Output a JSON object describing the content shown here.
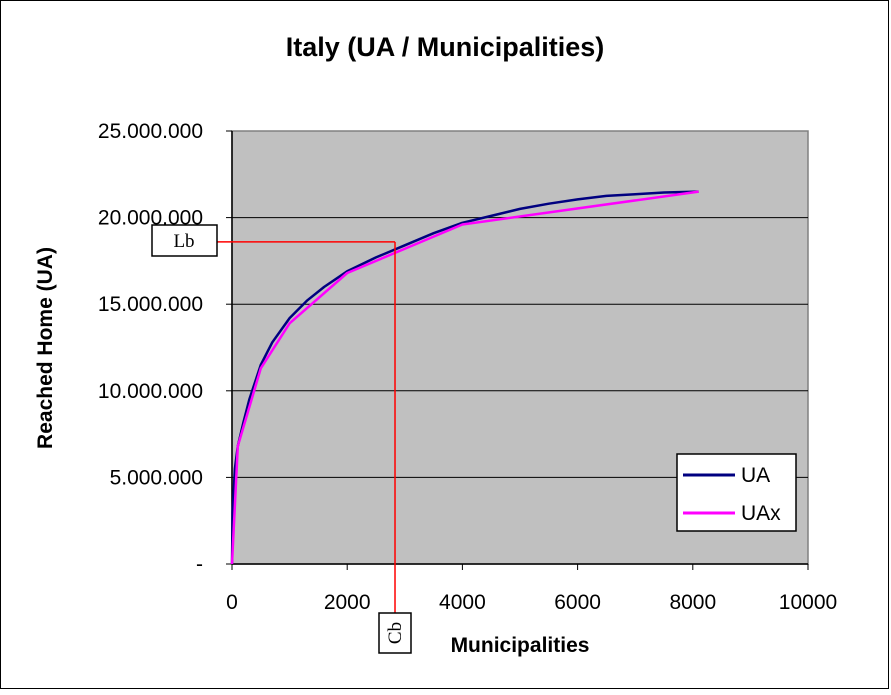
{
  "chart_data": {
    "type": "line",
    "title": "Italy (UA / Municipalities)",
    "xlabel": "Municipalities",
    "ylabel": "Reached Home (UA)",
    "xlim": [
      0,
      10000
    ],
    "ylim": [
      0,
      25000000
    ],
    "x_ticks": [
      "0",
      "2000",
      "4000",
      "6000",
      "8000",
      "10000"
    ],
    "y_ticks": [
      "-",
      "5.000.000",
      "10.000.000",
      "15.000.000",
      "20.000.000",
      "25.000.000"
    ],
    "grid": "horizontal",
    "legend_position": "bottom-right",
    "plot_background": "#C0C0C0",
    "series": [
      {
        "name": "UA",
        "color": "#000080",
        "x": [
          0,
          10,
          50,
          100,
          200,
          300,
          500,
          700,
          1000,
          1300,
          1600,
          2000,
          2500,
          3000,
          3500,
          4000,
          4500,
          5000,
          5500,
          6000,
          6500,
          7000,
          7500,
          8100
        ],
        "y": [
          0,
          3000000,
          5500000,
          6800000,
          8200000,
          9500000,
          11500000,
          12800000,
          14200000,
          15200000,
          16000000,
          16900000,
          17700000,
          18400000,
          19100000,
          19700000,
          20100000,
          20500000,
          20800000,
          21050000,
          21250000,
          21350000,
          21450000,
          21500000
        ]
      },
      {
        "name": "UAx",
        "color": "#FF00FF",
        "x": [
          0,
          100,
          500,
          1000,
          2000,
          4000,
          8100
        ],
        "y": [
          0,
          6800000,
          11300000,
          13900000,
          16800000,
          19600000,
          21500000
        ]
      }
    ],
    "annotations": {
      "lb": {
        "label": "Lb",
        "y": 18600000
      },
      "cb": {
        "label": "Cb",
        "x": 2830
      },
      "line_color": "#FF0000"
    }
  }
}
